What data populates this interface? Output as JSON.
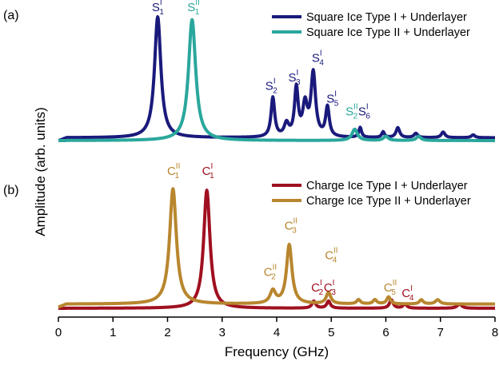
{
  "chart_data": {
    "type": "line",
    "xlabel": "Frequency (GHz)",
    "ylabel": "Amplitude (arb. units)",
    "xlim": [
      0,
      8
    ],
    "xticks": [
      "0",
      "1",
      "2",
      "3",
      "4",
      "5",
      "6",
      "7",
      "8"
    ],
    "panels": [
      {
        "label": "(a)",
        "series": [
          {
            "name": "Square Ice Type I + Underlayer",
            "color": "#1a1a7c",
            "baseline": 0.02,
            "peaks": [
              {
                "f": 1.82,
                "a": 0.86,
                "w": 0.07
              },
              {
                "f": 3.93,
                "a": 0.28,
                "w": 0.04
              },
              {
                "f": 4.18,
                "a": 0.09,
                "w": 0.05
              },
              {
                "f": 4.36,
                "a": 0.34,
                "w": 0.04
              },
              {
                "f": 4.52,
                "a": 0.22,
                "w": 0.05
              },
              {
                "f": 4.67,
                "a": 0.45,
                "w": 0.05
              },
              {
                "f": 4.93,
                "a": 0.21,
                "w": 0.04
              },
              {
                "f": 5.53,
                "a": 0.07,
                "w": 0.03
              },
              {
                "f": 5.95,
                "a": 0.04,
                "w": 0.03
              },
              {
                "f": 6.22,
                "a": 0.07,
                "w": 0.04
              },
              {
                "f": 6.55,
                "a": 0.03,
                "w": 0.04
              },
              {
                "f": 7.05,
                "a": 0.04,
                "w": 0.04
              },
              {
                "f": 7.6,
                "a": 0.02,
                "w": 0.04
              }
            ]
          },
          {
            "name": "Square Ice Type II + Underlayer",
            "color": "#2aa79c",
            "baseline": 0.0,
            "peaks": [
              {
                "f": 2.45,
                "a": 0.86,
                "w": 0.08
              },
              {
                "f": 5.43,
                "a": 0.08,
                "w": 0.06
              },
              {
                "f": 6.0,
                "a": 0.03,
                "w": 0.05
              },
              {
                "f": 6.6,
                "a": 0.03,
                "w": 0.05
              }
            ]
          }
        ],
        "annotations": [
          {
            "text": "S",
            "sub": "1",
            "sup": "I",
            "x": 1.8,
            "y": 0.92,
            "series": 0
          },
          {
            "text": "S",
            "sub": "1",
            "sup": "II",
            "x": 2.45,
            "y": 0.92,
            "series": 1
          },
          {
            "text": "S",
            "sub": "2",
            "sup": "I",
            "x": 3.88,
            "y": 0.36,
            "series": 0
          },
          {
            "text": "S",
            "sub": "3",
            "sup": "I",
            "x": 4.3,
            "y": 0.42,
            "series": 0
          },
          {
            "text": "S",
            "sub": "4",
            "sup": "I",
            "x": 4.73,
            "y": 0.56,
            "series": 0
          },
          {
            "text": "S",
            "sub": "5",
            "sup": "I",
            "x": 5.0,
            "y": 0.27,
            "series": 0
          },
          {
            "text": "S",
            "sub": "2",
            "sup": "II",
            "x": 5.35,
            "y": 0.18,
            "series": 1
          },
          {
            "text": "S",
            "sub": "6",
            "sup": "I",
            "x": 5.58,
            "y": 0.18,
            "series": 0
          }
        ]
      },
      {
        "label": "(b)",
        "series": [
          {
            "name": "Charge Ice Type I + Underlayer",
            "color": "#a01020",
            "baseline": 0.0,
            "peaks": [
              {
                "f": 2.72,
                "a": 0.84,
                "w": 0.07
              },
              {
                "f": 4.68,
                "a": 0.05,
                "w": 0.04
              },
              {
                "f": 4.95,
                "a": 0.05,
                "w": 0.04
              },
              {
                "f": 6.1,
                "a": 0.06,
                "w": 0.04
              },
              {
                "f": 6.35,
                "a": 0.03,
                "w": 0.04
              },
              {
                "f": 7.35,
                "a": 0.03,
                "w": 0.05
              }
            ]
          },
          {
            "name": "Charge Ice Type II + Underlayer",
            "color": "#b8862e",
            "baseline": 0.03,
            "peaks": [
              {
                "f": 2.1,
                "a": 0.82,
                "w": 0.075
              },
              {
                "f": 3.93,
                "a": 0.09,
                "w": 0.06
              },
              {
                "f": 4.23,
                "a": 0.42,
                "w": 0.06
              },
              {
                "f": 4.95,
                "a": 0.08,
                "w": 0.05
              },
              {
                "f": 5.5,
                "a": 0.03,
                "w": 0.04
              },
              {
                "f": 5.8,
                "a": 0.03,
                "w": 0.04
              },
              {
                "f": 6.05,
                "a": 0.05,
                "w": 0.04
              },
              {
                "f": 6.65,
                "a": 0.03,
                "w": 0.04
              },
              {
                "f": 6.95,
                "a": 0.03,
                "w": 0.05
              }
            ]
          }
        ],
        "annotations": [
          {
            "text": "C",
            "sub": "1",
            "sup": "II",
            "x": 2.08,
            "y": 0.95,
            "series": 1
          },
          {
            "text": "C",
            "sub": "1",
            "sup": "I",
            "x": 2.72,
            "y": 0.95,
            "series": 0
          },
          {
            "text": "C",
            "sub": "3",
            "sup": "II",
            "x": 4.23,
            "y": 0.56,
            "series": 1
          },
          {
            "text": "C",
            "sub": "2",
            "sup": "II",
            "x": 3.85,
            "y": 0.23,
            "series": 1
          },
          {
            "text": "C",
            "sub": "4",
            "sup": "II",
            "x": 4.97,
            "y": 0.35,
            "series": 1
          },
          {
            "text": "C",
            "sub": "2",
            "sup": "I",
            "x": 4.72,
            "y": 0.12,
            "series": 0
          },
          {
            "text": "C",
            "sub": "3",
            "sup": "I",
            "x": 4.95,
            "y": 0.12,
            "series": 0
          },
          {
            "text": "C",
            "sub": "5",
            "sup": "II",
            "x": 6.05,
            "y": 0.12,
            "series": 1
          },
          {
            "text": "C",
            "sub": "4",
            "sup": "I",
            "x": 6.38,
            "y": 0.08,
            "series": 0
          }
        ]
      }
    ]
  }
}
